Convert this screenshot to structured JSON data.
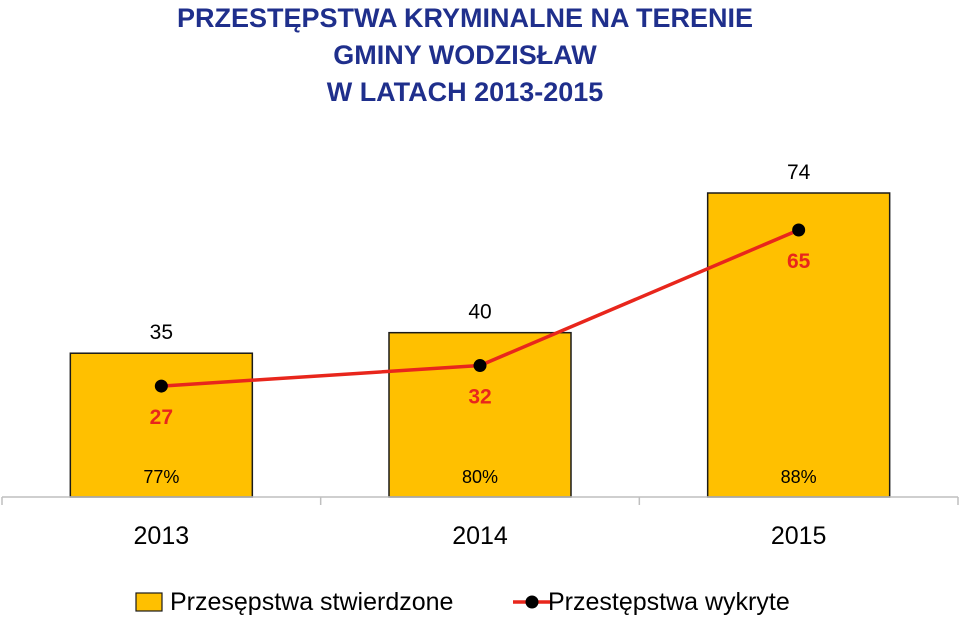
{
  "chart_data": {
    "type": "bar",
    "title_lines": [
      "PRZESTĘPSTWA KRYMINALNE NA TERENIE",
      "GMINY WODZISŁAW",
      "W LATACH 2013-2015"
    ],
    "categories": [
      "2013",
      "2014",
      "2015"
    ],
    "series": [
      {
        "name": "Przesępstwa stwierdzone",
        "type": "bar",
        "values": [
          35,
          40,
          74
        ],
        "color": "#ffc000"
      },
      {
        "name": "Przestępstwa wykryte",
        "type": "line",
        "values": [
          27,
          32,
          65
        ],
        "color": "#e8261c",
        "marker_color": "#000000"
      }
    ],
    "percentages": [
      "77%",
      "80%",
      "88%"
    ],
    "ylim": [
      0,
      80
    ],
    "grid": false,
    "legend_position": "bottom",
    "xlabel": "",
    "ylabel": ""
  }
}
